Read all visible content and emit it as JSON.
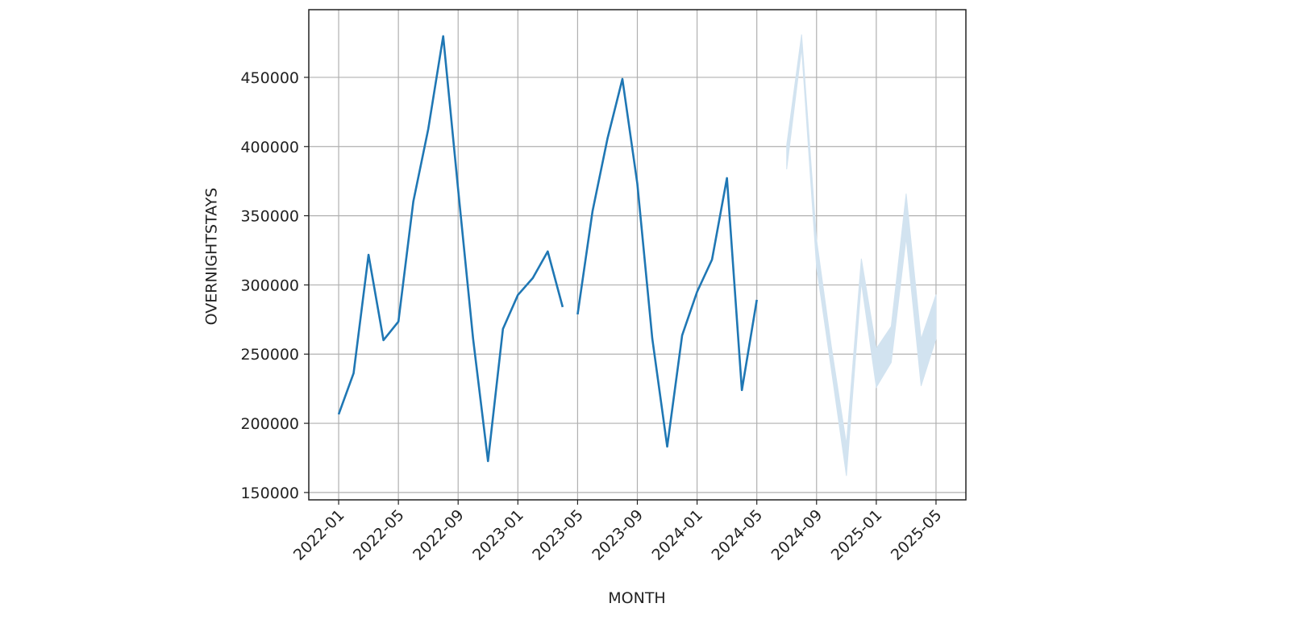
{
  "chart_data": {
    "type": "line",
    "xlabel": "MONTH",
    "ylabel": "OVERNIGHTSTAYS",
    "xlim": [
      "2021-11",
      "2025-07"
    ],
    "xticks": [
      "2022-01",
      "2022-05",
      "2022-09",
      "2023-01",
      "2023-05",
      "2023-09",
      "2024-01",
      "2024-05",
      "2024-09",
      "2025-01",
      "2025-05"
    ],
    "ylim": [
      144700,
      498900
    ],
    "yticks": [
      150000,
      200000,
      250000,
      300000,
      350000,
      400000,
      450000
    ],
    "grid": true,
    "series": [
      {
        "color": "#1f77b4",
        "x": [
          "2022-01",
          "2022-02",
          "2022-03",
          "2022-04",
          "2022-05",
          "2022-06",
          "2022-07",
          "2022-08",
          "2022-09",
          "2022-10",
          "2022-11",
          "2022-12",
          "2023-01",
          "2023-02",
          "2023-03",
          "2023-04"
        ],
        "values": [
          206500,
          236200,
          321800,
          260100,
          273500,
          360300,
          412700,
          479700,
          369000,
          261300,
          172700,
          268200,
          292700,
          305000,
          324200,
          284000
        ]
      },
      {
        "color": "#1f77b4",
        "x": [
          "2023-05",
          "2023-06",
          "2023-07",
          "2023-08",
          "2023-09",
          "2023-10",
          "2023-11",
          "2023-12",
          "2024-01",
          "2024-02",
          "2024-03",
          "2024-04",
          "2024-05"
        ],
        "values": [
          278700,
          353300,
          405700,
          448800,
          373100,
          261300,
          183200,
          263600,
          295000,
          318300,
          377200,
          224000,
          289200
        ]
      }
    ],
    "band": {
      "color": "#d2e3f0",
      "x": [
        "2024-07",
        "2024-08",
        "2024-09",
        "2024-10",
        "2024-11",
        "2024-12",
        "2025-01",
        "2025-02",
        "2025-03",
        "2025-04",
        "2025-05"
      ],
      "lower": [
        383600,
        471000,
        313000,
        238000,
        162000,
        302000,
        226000,
        244000,
        334000,
        227000,
        261000
      ],
      "upper": [
        401000,
        481000,
        333000,
        255000,
        185000,
        319000,
        254000,
        270000,
        366000,
        261000,
        293000
      ]
    }
  }
}
